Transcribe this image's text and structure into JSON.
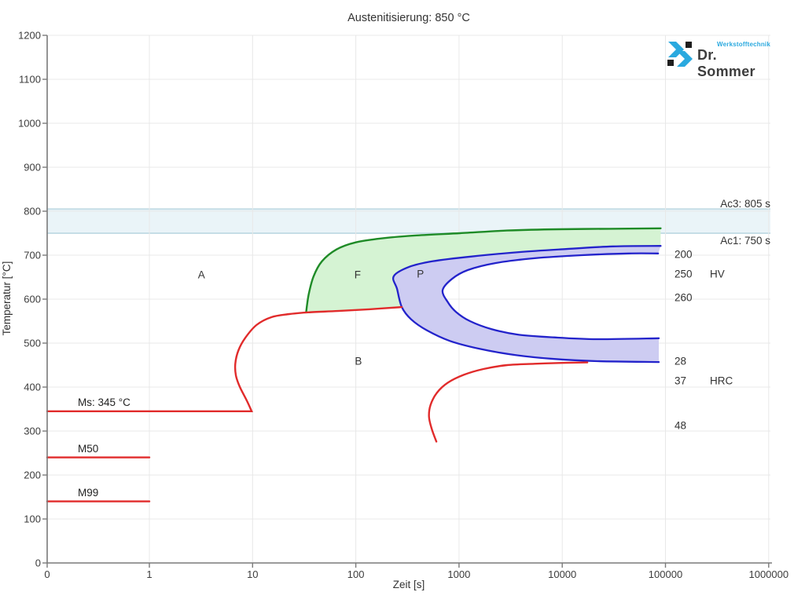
{
  "title": "Austenitisierung: 850 °C",
  "logo": {
    "brand": "Dr. Sommer",
    "tagline": "Werkstofftechnik",
    "blue": "#2aa9df",
    "dark": "#1e1e1e"
  },
  "chart_data": {
    "type": "area",
    "title": "Austenitisierung: 850 °C",
    "xlabel": "Zeit [s]",
    "ylabel": "Temperatur [°C]",
    "x_scale": "log",
    "x_ticks": [
      "0",
      "1",
      "10",
      "100",
      "1000",
      "10000",
      "100000",
      "1000000"
    ],
    "y_ticks": [
      0,
      100,
      200,
      300,
      400,
      500,
      600,
      700,
      800,
      900,
      1000,
      1100,
      1200
    ],
    "ylim": [
      0,
      1200
    ],
    "grid": true,
    "band": {
      "top_label": "Ac3: 805 s",
      "bottom_label": "Ac1: 750 s",
      "top_temp": 805,
      "bottom_temp": 750
    },
    "iso_lines": [
      {
        "label": "Ms: 345 °C",
        "temp": 345,
        "t_end": 9.8
      },
      {
        "label": "M50",
        "temp": 240,
        "t_end": 1
      },
      {
        "label": "M99",
        "temp": 140,
        "t_end": 1
      }
    ],
    "regions": [
      {
        "label": "A",
        "t": 3.2,
        "temp": 656
      },
      {
        "label": "F",
        "t": 104,
        "temp": 656
      },
      {
        "label": "P",
        "t": 422,
        "temp": 657
      },
      {
        "label": "B",
        "t": 106,
        "temp": 459
      }
    ],
    "hardness_hv": {
      "unit": "HV",
      "unit_temp": 658,
      "entries": [
        [
          "200",
          701
        ],
        [
          "250",
          658
        ],
        [
          "260",
          604
        ]
      ]
    },
    "hardness_hrc": {
      "unit": "HRC",
      "unit_temp": 414,
      "entries": [
        [
          "28",
          459
        ],
        [
          "37",
          414
        ],
        [
          "48",
          312
        ]
      ]
    },
    "curves": {
      "red_main": [
        [
          9.8,
          345
        ],
        [
          8.8,
          369
        ],
        [
          7.5,
          401
        ],
        [
          6.9,
          426
        ],
        [
          6.8,
          453
        ],
        [
          7.3,
          484
        ],
        [
          8.5,
          512
        ],
        [
          10.9,
          541
        ],
        [
          15.2,
          559
        ],
        [
          22.7,
          566
        ],
        [
          34.6,
          570
        ],
        [
          67.2,
          573
        ],
        [
          135,
          577
        ],
        [
          279,
          582
        ]
      ],
      "red_lower": [
        [
          603,
          276
        ],
        [
          542,
          306
        ],
        [
          512,
          333
        ],
        [
          531,
          360
        ],
        [
          611,
          387
        ],
        [
          779,
          410
        ],
        [
          1117,
          428
        ],
        [
          1721,
          441
        ],
        [
          2924,
          450
        ],
        [
          5400,
          453
        ],
        [
          9980,
          455
        ],
        [
          17500,
          456
        ]
      ],
      "green_top": [
        [
          33,
          570
        ],
        [
          35,
          611
        ],
        [
          39,
          652
        ],
        [
          47,
          686
        ],
        [
          65,
          713
        ],
        [
          99,
          729
        ],
        [
          176,
          738
        ],
        [
          389,
          745
        ],
        [
          1021,
          750
        ],
        [
          2924,
          756
        ],
        [
          9147,
          759
        ],
        [
          28600,
          760
        ],
        [
          89800,
          761
        ]
      ],
      "blue_outer_top": [
        [
          233,
          652
        ],
        [
          326,
          673
        ],
        [
          552,
          686
        ],
        [
          1323,
          697
        ],
        [
          3805,
          707
        ],
        [
          10870,
          714
        ],
        [
          31000,
          720
        ],
        [
          89800,
          721
        ]
      ],
      "blue_outer_bottom": [
        [
          233,
          652
        ],
        [
          251,
          623
        ],
        [
          279,
          582
        ],
        [
          344,
          554
        ],
        [
          489,
          529
        ],
        [
          813,
          505
        ],
        [
          1582,
          487
        ],
        [
          3477,
          473
        ],
        [
          8356,
          464
        ],
        [
          21900,
          459
        ],
        [
          86100,
          457
        ]
      ],
      "blue_inner_top": [
        [
          693,
          620
        ],
        [
          855,
          646
        ],
        [
          1213,
          666
        ],
        [
          2244,
          682
        ],
        [
          5400,
          693
        ],
        [
          15500,
          700
        ],
        [
          44300,
          704
        ],
        [
          85000,
          704
        ]
      ],
      "blue_inner_bottom": [
        [
          693,
          620
        ],
        [
          779,
          593
        ],
        [
          934,
          571
        ],
        [
          1279,
          550
        ],
        [
          2056,
          532
        ],
        [
          3805,
          519
        ],
        [
          8356,
          513
        ],
        [
          21900,
          509
        ],
        [
          86100,
          511
        ]
      ]
    },
    "colors": {
      "red": "#e12b2b",
      "green_stroke": "#1f8b27",
      "green_fill": "#d5f3d3",
      "blue_stroke": "#2323cb",
      "blue_fill": "#cdccf2",
      "band_fill": "#eaf4f8",
      "band_line": "#c5dde6",
      "grid": "#e8e8e8",
      "axis": "#7a7a7a"
    }
  }
}
